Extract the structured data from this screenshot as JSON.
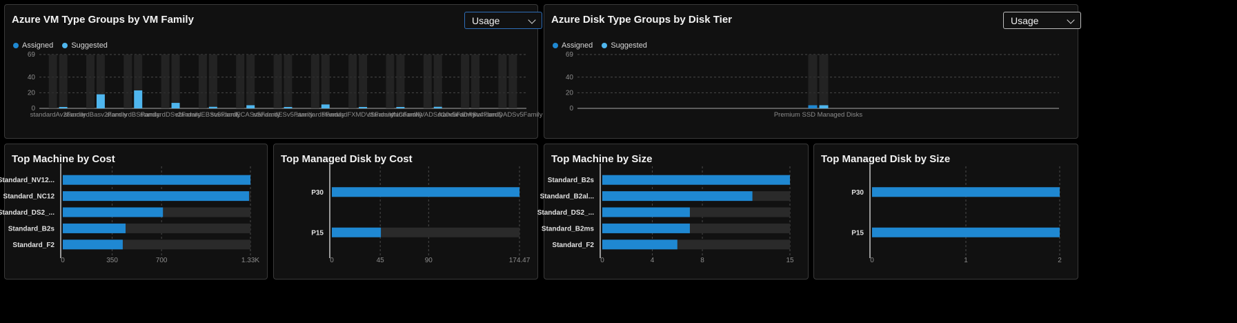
{
  "colors": {
    "assigned": "#1f88d2",
    "suggested": "#4fb6ee",
    "track": "#2a2a2a",
    "grid": "#4a4a4a",
    "tick": "#8c8c8c",
    "label": "#e0e0e0"
  },
  "panels": {
    "vm_family": {
      "title": "Azure VM Type Groups by VM Family",
      "dropdown": "Usage",
      "legend": {
        "assigned": "Assigned",
        "suggested": "Suggested"
      },
      "chart_data": {
        "type": "bar",
        "categories": [
          "standardAv2Family",
          "standardBasv2Family",
          "standardBSFamily",
          "standardDSv2Family",
          "standardEBSv5Family",
          "standardECASv5Family",
          "standardESv5Family",
          "standardFFamily",
          "standardFXMDVSFamily",
          "standardNCFamily",
          "standardNVADSA10v5Family",
          "standardDASv4Family",
          "standardDADSv5Family"
        ],
        "series": [
          {
            "name": "Assigned",
            "values": [
              0,
              0,
              0,
              0,
              0,
              0,
              0,
              0,
              0,
              0,
              0,
              0,
              0
            ]
          },
          {
            "name": "Suggested",
            "values": [
              1,
              18,
              23,
              7,
              2,
              4,
              1,
              5,
              1,
              1,
              2,
              0,
              0
            ]
          }
        ],
        "yticks": [
          0,
          20,
          40,
          69
        ],
        "ylim": [
          0,
          69
        ]
      }
    },
    "disk_tier": {
      "title": "Azure Disk Type Groups by Disk Tier",
      "dropdown": "Usage",
      "legend": {
        "assigned": "Assigned",
        "suggested": "Suggested"
      },
      "chart_data": {
        "type": "bar",
        "categories": [
          "Premium SSD Managed Disks"
        ],
        "series": [
          {
            "name": "Assigned",
            "values": [
              4
            ]
          },
          {
            "name": "Suggested",
            "values": [
              4
            ]
          }
        ],
        "yticks": [
          0,
          20,
          40,
          69
        ],
        "ylim": [
          0,
          69
        ]
      }
    },
    "machine_cost": {
      "title": "Top Machine by Cost",
      "chart_data": {
        "type": "bar",
        "categories": [
          "Standard_NV12...",
          "Standard_NC12",
          "Standard_DS2_...",
          "Standard_B2s",
          "Standard_F2"
        ],
        "values": [
          1330,
          1320,
          710,
          445,
          425
        ],
        "xtick_labels": [
          "0",
          "350",
          "700",
          "1.33K"
        ],
        "xtick_values": [
          0,
          350,
          700,
          1330
        ],
        "xlim": [
          0,
          1330
        ]
      }
    },
    "disk_cost": {
      "title": "Top Managed Disk by Cost",
      "chart_data": {
        "type": "bar",
        "categories": [
          "P30",
          "P15"
        ],
        "values": [
          174.47,
          45.6
        ],
        "xtick_labels": [
          "0",
          "45",
          "90",
          "174.47"
        ],
        "xtick_values": [
          0,
          45,
          90,
          174.47
        ],
        "xlim": [
          0,
          174.47
        ]
      }
    },
    "machine_size": {
      "title": "Top Machine by Size",
      "chart_data": {
        "type": "bar",
        "categories": [
          "Standard_B2s",
          "Standard_B2al...",
          "Standard_DS2_...",
          "Standard_B2ms",
          "Standard_F2"
        ],
        "values": [
          15,
          12,
          7,
          7,
          6
        ],
        "xtick_labels": [
          "0",
          "4",
          "8",
          "15"
        ],
        "xtick_values": [
          0,
          4,
          8,
          15
        ],
        "xlim": [
          0,
          15
        ]
      }
    },
    "disk_size": {
      "title": "Top Managed Disk by Size",
      "chart_data": {
        "type": "bar",
        "categories": [
          "P30",
          "P15"
        ],
        "values": [
          2,
          2
        ],
        "xtick_labels": [
          "0",
          "1",
          "2"
        ],
        "xtick_values": [
          0,
          1,
          2
        ],
        "xlim": [
          0,
          2
        ]
      }
    }
  }
}
